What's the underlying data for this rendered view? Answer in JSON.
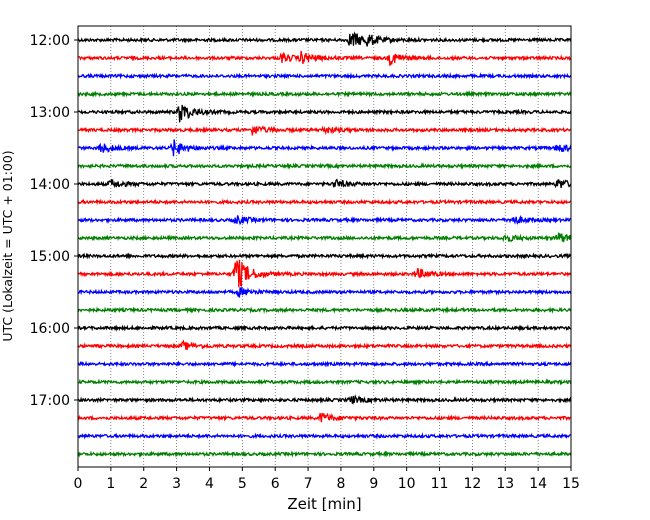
{
  "chart_data": {
    "type": "line",
    "subtype": "helicorder",
    "xlabel": "Zeit  [min]",
    "ylabel": "UTC (Lokalzeit = UTC + 01:00)",
    "xlim": [
      0,
      15
    ],
    "x_ticks": [
      "0",
      "1",
      "2",
      "3",
      "4",
      "5",
      "6",
      "7",
      "8",
      "9",
      "10",
      "11",
      "12",
      "13",
      "14",
      "15"
    ],
    "y_tick_labels": [
      "12:00",
      "13:00",
      "14:00",
      "15:00",
      "16:00",
      "17:00"
    ],
    "grid": "vertical dotted at each minute",
    "line_colors": [
      "#000000",
      "#ff0000",
      "#0000ff",
      "#008000"
    ],
    "series": [
      {
        "start": "12:00",
        "color_index": 0,
        "events": [
          {
            "t": 8.3,
            "amp": 2.2
          },
          {
            "t": 8.8,
            "amp": 1.0
          }
        ]
      },
      {
        "start": "12:15",
        "color_index": 1,
        "events": [
          {
            "t": 6.2,
            "amp": 1.0
          },
          {
            "t": 6.8,
            "amp": 1.3
          },
          {
            "t": 9.5,
            "amp": 1.5
          }
        ]
      },
      {
        "start": "12:30",
        "color_index": 2,
        "events": []
      },
      {
        "start": "12:45",
        "color_index": 3,
        "events": []
      },
      {
        "start": "13:00",
        "color_index": 0,
        "events": [
          {
            "t": 3.1,
            "amp": 2.5
          }
        ]
      },
      {
        "start": "13:15",
        "color_index": 1,
        "events": [
          {
            "t": 5.3,
            "amp": 1.2
          },
          {
            "t": 7.5,
            "amp": 0.8
          }
        ]
      },
      {
        "start": "13:30",
        "color_index": 2,
        "events": [
          {
            "t": 0.7,
            "amp": 1.2
          },
          {
            "t": 2.9,
            "amp": 2.0
          },
          {
            "t": 14.6,
            "amp": 1.0
          }
        ]
      },
      {
        "start": "13:45",
        "color_index": 3,
        "events": []
      },
      {
        "start": "14:00",
        "color_index": 0,
        "events": [
          {
            "t": 1.0,
            "amp": 1.0
          },
          {
            "t": 7.8,
            "amp": 1.0
          },
          {
            "t": 14.6,
            "amp": 1.2
          }
        ]
      },
      {
        "start": "14:15",
        "color_index": 1,
        "events": []
      },
      {
        "start": "14:30",
        "color_index": 2,
        "events": [
          {
            "t": 4.8,
            "amp": 1.0
          },
          {
            "t": 13.2,
            "amp": 1.0
          }
        ]
      },
      {
        "start": "14:45",
        "color_index": 3,
        "events": [
          {
            "t": 13.0,
            "amp": 0.8
          },
          {
            "t": 14.6,
            "amp": 1.3
          }
        ]
      },
      {
        "start": "15:00",
        "color_index": 0,
        "events": []
      },
      {
        "start": "15:15",
        "color_index": 1,
        "events": [
          {
            "t": 4.8,
            "amp": 4.5
          },
          {
            "t": 10.3,
            "amp": 1.2
          }
        ]
      },
      {
        "start": "15:30",
        "color_index": 2,
        "events": [
          {
            "t": 4.9,
            "amp": 1.0
          }
        ]
      },
      {
        "start": "15:45",
        "color_index": 3,
        "events": []
      },
      {
        "start": "16:00",
        "color_index": 0,
        "events": []
      },
      {
        "start": "16:15",
        "color_index": 1,
        "events": [
          {
            "t": 3.2,
            "amp": 0.9
          }
        ]
      },
      {
        "start": "16:30",
        "color_index": 2,
        "events": []
      },
      {
        "start": "16:45",
        "color_index": 3,
        "events": []
      },
      {
        "start": "17:00",
        "color_index": 0,
        "events": [
          {
            "t": 8.3,
            "amp": 0.9
          }
        ]
      },
      {
        "start": "17:15",
        "color_index": 1,
        "events": [
          {
            "t": 7.4,
            "amp": 1.2
          }
        ]
      },
      {
        "start": "17:30",
        "color_index": 2,
        "events": []
      },
      {
        "start": "17:45",
        "color_index": 3,
        "events": []
      }
    ]
  }
}
